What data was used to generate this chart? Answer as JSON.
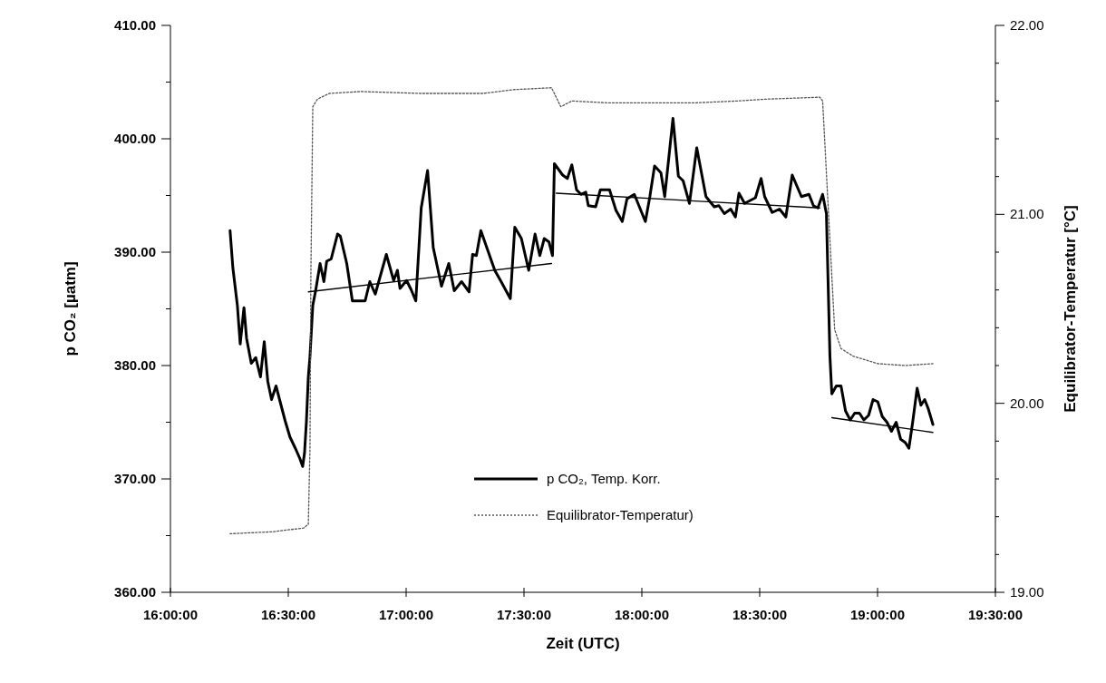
{
  "chart_data": {
    "type": "line",
    "xlabel": "Zeit (UTC)",
    "ylabel": "p CO₂ [µatm]",
    "y2label": "Equilibrator-Temperatur [°C]",
    "xlim": [
      16,
      19.5
    ],
    "xticks": [
      {
        "value": 16,
        "label": "16:00:00"
      },
      {
        "value": 16.5,
        "label": "16:30:00"
      },
      {
        "value": 17,
        "label": "17:00:00"
      },
      {
        "value": 17.5,
        "label": "17:30:00"
      },
      {
        "value": 18,
        "label": "18:00:00"
      },
      {
        "value": 18.5,
        "label": "18:30:00"
      },
      {
        "value": 19,
        "label": "19:00:00"
      },
      {
        "value": 19.5,
        "label": "19:30:00"
      }
    ],
    "ylim": [
      360,
      410
    ],
    "yticks": [
      {
        "value": 360,
        "label": "360.00"
      },
      {
        "value": 365,
        "label": null
      },
      {
        "value": 370,
        "label": "370.00"
      },
      {
        "value": 375,
        "label": null
      },
      {
        "value": 380,
        "label": "380.00"
      },
      {
        "value": 385,
        "label": null
      },
      {
        "value": 390,
        "label": "390.00"
      },
      {
        "value": 395,
        "label": null
      },
      {
        "value": 400,
        "label": "400.00"
      },
      {
        "value": 405,
        "label": null
      },
      {
        "value": 410,
        "label": "410.00"
      }
    ],
    "y2lim": [
      19,
      22
    ],
    "y2ticks": [
      {
        "value": 19,
        "label": "19.00"
      },
      {
        "value": 19.2,
        "label": null
      },
      {
        "value": 19.4,
        "label": null
      },
      {
        "value": 19.6,
        "label": null
      },
      {
        "value": 19.8,
        "label": null
      },
      {
        "value": 20,
        "label": "20.00"
      },
      {
        "value": 20.2,
        "label": null
      },
      {
        "value": 20.4,
        "label": null
      },
      {
        "value": 20.6,
        "label": null
      },
      {
        "value": 20.8,
        "label": null
      },
      {
        "value": 21,
        "label": "21.00"
      },
      {
        "value": 21.2,
        "label": null
      },
      {
        "value": 21.4,
        "label": null
      },
      {
        "value": 21.6,
        "label": null
      },
      {
        "value": 21.8,
        "label": null
      },
      {
        "value": 22,
        "label": "22.00"
      }
    ],
    "grid": false,
    "legend": "bottom",
    "marker": "none",
    "series": [
      {
        "name": "p CO₂, Temp. Korr.",
        "color": "#000000",
        "line_style": "solid",
        "x": [
          16.253,
          16.265,
          16.284,
          16.296,
          16.304,
          16.312,
          16.323,
          16.343,
          16.362,
          16.382,
          16.398,
          16.413,
          16.429,
          16.448,
          16.468,
          16.487,
          16.507,
          16.53,
          16.549,
          16.561,
          16.569,
          16.577,
          16.585,
          16.592,
          16.604,
          16.616,
          16.635,
          16.651,
          16.663,
          16.682,
          16.709,
          16.721,
          16.748,
          16.772,
          16.826,
          16.846,
          16.869,
          16.916,
          16.935,
          16.947,
          16.963,
          16.974,
          17.002,
          17.021,
          17.041,
          17.064,
          17.091,
          17.115,
          17.15,
          17.181,
          17.204,
          17.235,
          17.267,
          17.282,
          17.298,
          17.317,
          17.376,
          17.403,
          17.442,
          17.461,
          17.489,
          17.52,
          17.547,
          17.567,
          17.586,
          17.606,
          17.621,
          17.629,
          17.664,
          17.684,
          17.703,
          17.723,
          17.742,
          17.762,
          17.773,
          17.804,
          17.824,
          17.863,
          17.89,
          17.917,
          17.937,
          17.968,
          18.015,
          18.034,
          18.054,
          18.081,
          18.097,
          18.132,
          18.155,
          18.175,
          18.202,
          18.233,
          18.272,
          18.307,
          18.327,
          18.35,
          18.377,
          18.397,
          18.412,
          18.436,
          18.482,
          18.506,
          18.521,
          18.553,
          18.584,
          18.611,
          18.638,
          18.677,
          18.709,
          18.728,
          18.747,
          18.767,
          18.783,
          18.798,
          18.806,
          18.825,
          18.845,
          18.864,
          18.884,
          18.903,
          18.923,
          18.942,
          18.962,
          18.981,
          19.001,
          19.02,
          19.04,
          19.059,
          19.079,
          19.098,
          19.118,
          19.133,
          19.149,
          19.168,
          19.184,
          19.2,
          19.215,
          19.235
        ],
        "values": [
          391.9,
          388.6,
          385.3,
          381.9,
          383.5,
          385.1,
          382.4,
          380.2,
          380.7,
          379.0,
          382.1,
          378.6,
          377.0,
          378.2,
          376.6,
          375.1,
          373.7,
          372.7,
          371.8,
          371.1,
          372.3,
          375.1,
          379.0,
          380.8,
          385.3,
          386.6,
          389.0,
          387.4,
          389.2,
          389.4,
          391.6,
          391.4,
          389.0,
          385.7,
          385.7,
          387.4,
          386.3,
          389.8,
          388.4,
          387.5,
          388.4,
          386.8,
          387.5,
          386.7,
          385.7,
          393.9,
          397.2,
          390.4,
          387.0,
          389.0,
          386.6,
          387.4,
          386.5,
          389.8,
          389.7,
          391.9,
          388.4,
          387.4,
          385.9,
          392.2,
          391.2,
          388.4,
          391.6,
          389.7,
          391.2,
          390.9,
          389.7,
          397.8,
          396.8,
          396.5,
          397.7,
          395.5,
          395.1,
          395.3,
          394.1,
          394.0,
          395.5,
          395.5,
          393.7,
          392.7,
          394.7,
          395.1,
          392.7,
          394.9,
          397.6,
          397.0,
          394.9,
          401.8,
          396.7,
          396.3,
          394.3,
          399.2,
          394.9,
          394.0,
          394.1,
          393.4,
          393.8,
          393.1,
          395.2,
          394.3,
          394.8,
          396.5,
          394.9,
          393.5,
          393.8,
          393.1,
          396.8,
          394.9,
          395.1,
          394.1,
          393.9,
          395.1,
          393.4,
          380.8,
          377.5,
          378.2,
          378.2,
          376.0,
          375.2,
          375.8,
          375.8,
          375.2,
          375.6,
          377.0,
          376.8,
          375.5,
          375.0,
          374.2,
          375.0,
          373.5,
          373.2,
          372.7,
          375.0,
          378.0,
          376.5,
          377.0,
          376.2,
          374.8
        ]
      },
      {
        "name": "Equilibrator-Temperatur)",
        "color": "#555555",
        "line_style": "dotted",
        "axis": "y2",
        "x": [
          16.253,
          16.429,
          16.565,
          16.585,
          16.592,
          16.596,
          16.604,
          16.624,
          16.674,
          16.807,
          17.064,
          17.325,
          17.454,
          17.617,
          17.656,
          17.703,
          17.859,
          18.116,
          18.221,
          18.405,
          18.533,
          18.755,
          18.767,
          18.775,
          18.818,
          18.845,
          18.896,
          19.001,
          19.118,
          19.235
        ],
        "values": [
          19.31,
          19.32,
          19.34,
          19.36,
          19.76,
          20.7,
          21.57,
          21.61,
          21.64,
          21.65,
          21.64,
          21.64,
          21.66,
          21.67,
          21.57,
          21.6,
          21.59,
          21.59,
          21.59,
          21.6,
          21.61,
          21.62,
          21.6,
          21.41,
          20.39,
          20.29,
          20.25,
          20.21,
          20.2,
          20.21
        ]
      },
      {
        "color": "#000000",
        "line_style": "solid",
        "x": [
          16.585,
          17.617
        ],
        "values": [
          386.5,
          389.0
        ]
      },
      {
        "color": "#000000",
        "line_style": "solid",
        "x": [
          17.637,
          18.755
        ],
        "values": [
          395.2,
          393.9
        ]
      },
      {
        "color": "#000000",
        "line_style": "solid",
        "x": [
          18.806,
          19.235
        ],
        "values": [
          375.4,
          374.1
        ]
      }
    ]
  }
}
